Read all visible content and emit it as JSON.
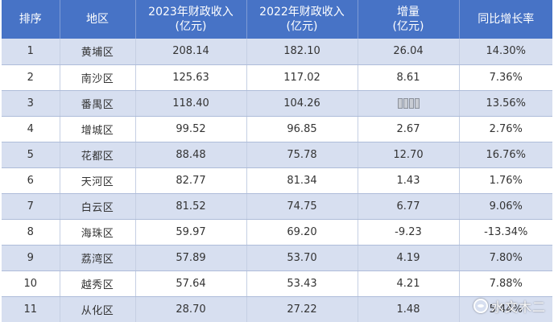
{
  "colors": {
    "header_bg": "#4773c6",
    "header_text": "#ffffff",
    "row_stripe": "#d7dff0",
    "row_plain": "#ffffff",
    "cell_text": "#333333"
  },
  "table": {
    "headers": [
      [
        "排序"
      ],
      [
        "地区"
      ],
      [
        "2023年财政收入",
        "(亿元)"
      ],
      [
        "2022年财政收入",
        "(亿元)"
      ],
      [
        "增量",
        "(亿元)"
      ],
      [
        "同比增长率"
      ]
    ],
    "rows": [
      [
        "1",
        "黄埔区",
        "208.14",
        "182.10",
        "26.04",
        "14.30%"
      ],
      [
        "2",
        "南沙区",
        "125.63",
        "117.02",
        "8.61",
        "7.36%"
      ],
      [
        "3",
        "番禺区",
        "118.40",
        "104.26",
        "",
        "13.56%"
      ],
      [
        "4",
        "增城区",
        "99.52",
        "96.85",
        "2.67",
        "2.76%"
      ],
      [
        "5",
        "花都区",
        "88.48",
        "75.78",
        "12.70",
        "16.76%"
      ],
      [
        "6",
        "天河区",
        "82.77",
        "81.34",
        "1.43",
        "1.76%"
      ],
      [
        "7",
        "白云区",
        "81.52",
        "74.75",
        "6.77",
        "9.06%"
      ],
      [
        "8",
        "海珠区",
        "59.97",
        "69.20",
        "-9.23",
        "-13.34%"
      ],
      [
        "9",
        "荔湾区",
        "57.89",
        "53.70",
        "4.19",
        "7.80%"
      ],
      [
        "10",
        "越秀区",
        "57.64",
        "53.43",
        "4.21",
        "7.88%"
      ],
      [
        "11",
        "从化区",
        "28.70",
        "27.22",
        "1.48",
        "5.44%"
      ]
    ]
  },
  "watermark": {
    "text": "水文木二",
    "icon": "platform-logo-icon"
  }
}
